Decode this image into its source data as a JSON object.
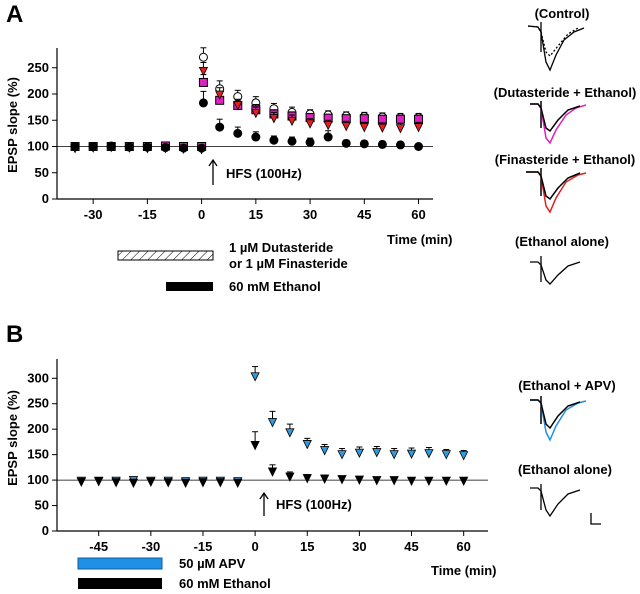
{
  "chart_data": [
    {
      "panel": "A",
      "type": "scatter",
      "ylabel": "EPSP slope (%)",
      "xlabel": "Time (min)",
      "xticks": [
        -30,
        -15,
        0,
        15,
        30,
        45,
        60
      ],
      "yticks": [
        0,
        50,
        100,
        150,
        200,
        250
      ],
      "xlim": [
        -40,
        64
      ],
      "ylim": [
        0,
        280
      ],
      "annotation": "HFS (100Hz)",
      "bars": [
        {
          "label": "1 µM Dutasteride",
          "label2": "or 1 µM Finasteride",
          "x": [
            -20,
            0
          ],
          "style": "hatched"
        },
        {
          "label": "60 mM Ethanol",
          "x": [
            -10,
            0
          ],
          "style": "black"
        }
      ],
      "series": [
        {
          "marker": "open-circle",
          "color": "#ffffff",
          "x": [
            -35,
            -30,
            -25,
            -20,
            -15,
            -10,
            -5,
            0,
            0.5,
            5,
            10,
            15,
            20,
            25,
            30,
            35,
            40,
            45,
            50,
            55,
            60
          ],
          "y": [
            100,
            100,
            101,
            100,
            99,
            100,
            99,
            98,
            270,
            210,
            195,
            183,
            172,
            165,
            162,
            160,
            158,
            157,
            156,
            155,
            155
          ],
          "err": [
            4,
            4,
            4,
            4,
            4,
            4,
            4,
            4,
            18,
            15,
            12,
            12,
            10,
            10,
            8,
            8,
            8,
            8,
            8,
            8,
            8
          ]
        },
        {
          "marker": "square",
          "color": "#e020c0",
          "x": [
            -35,
            -30,
            -25,
            -20,
            -15,
            -10,
            -5,
            0,
            0.5,
            5,
            10,
            15,
            20,
            25,
            30,
            35,
            40,
            45,
            50,
            55,
            60
          ],
          "y": [
            100,
            100,
            100,
            100,
            100,
            101,
            100,
            100,
            222,
            188,
            178,
            170,
            162,
            158,
            155,
            154,
            153,
            153,
            152,
            152,
            152
          ],
          "err": [
            3,
            3,
            3,
            3,
            3,
            3,
            3,
            3,
            15,
            12,
            10,
            10,
            8,
            8,
            8,
            7,
            7,
            7,
            7,
            7,
            7
          ]
        },
        {
          "marker": "triangle-down",
          "color": "#e02020",
          "x": [
            -35,
            -30,
            -25,
            -20,
            -15,
            -10,
            -5,
            0,
            0.5,
            5,
            10,
            15,
            20,
            25,
            30,
            35,
            40,
            45,
            50,
            55,
            60
          ],
          "y": [
            98,
            99,
            100,
            99,
            98,
            98,
            97,
            96,
            245,
            200,
            180,
            165,
            155,
            150,
            145,
            142,
            140,
            138,
            137,
            136,
            138
          ],
          "err": [
            4,
            4,
            4,
            4,
            4,
            4,
            4,
            4,
            15,
            12,
            10,
            10,
            10,
            10,
            8,
            8,
            8,
            8,
            8,
            8,
            8
          ]
        },
        {
          "marker": "filled-circle",
          "color": "#000000",
          "x": [
            -35,
            -30,
            -25,
            -20,
            -15,
            -10,
            -5,
            0,
            0.5,
            5,
            10,
            15,
            20,
            25,
            30,
            35,
            40,
            45,
            50,
            55,
            60
          ],
          "y": [
            100,
            100,
            100,
            99,
            99,
            98,
            97,
            97,
            183,
            137,
            125,
            118,
            112,
            110,
            108,
            118,
            106,
            105,
            104,
            103,
            100
          ],
          "err": [
            4,
            4,
            4,
            4,
            4,
            4,
            4,
            4,
            22,
            15,
            12,
            10,
            8,
            8,
            8,
            12,
            6,
            6,
            6,
            6,
            5
          ]
        }
      ],
      "trace_labels": [
        "(Control)",
        "(Dutasteride + Ethanol)",
        "(Finasteride + Ethanol)",
        "(Ethanol alone)"
      ]
    },
    {
      "panel": "B",
      "type": "scatter",
      "ylabel": "EPSP slope (%)",
      "xlabel": "Time (min)",
      "xticks": [
        -45,
        -30,
        -15,
        0,
        15,
        30,
        45,
        60
      ],
      "yticks": [
        0,
        50,
        100,
        150,
        200,
        250,
        300
      ],
      "xlim": [
        -57,
        67
      ],
      "ylim": [
        0,
        330
      ],
      "annotation": "HFS (100Hz)",
      "bars": [
        {
          "label": "50 µM APV",
          "x": [
            -55,
            -35
          ],
          "style": "blue"
        },
        {
          "label": "60 mM Ethanol",
          "x": [
            -55,
            -35
          ],
          "style": "black"
        }
      ],
      "series": [
        {
          "marker": "triangle-down",
          "color": "#3399dd",
          "x": [
            -50,
            -45,
            -40,
            -35,
            -30,
            -25,
            -20,
            -15,
            -10,
            -5,
            0,
            5,
            10,
            15,
            20,
            25,
            30,
            35,
            40,
            45,
            50,
            55,
            60
          ],
          "y": [
            100,
            100,
            100,
            101,
            100,
            100,
            99,
            100,
            100,
            99,
            305,
            215,
            195,
            172,
            160,
            152,
            155,
            156,
            152,
            153,
            154,
            152,
            150
          ],
          "err": [
            4,
            4,
            4,
            4,
            4,
            4,
            4,
            4,
            4,
            4,
            18,
            20,
            15,
            10,
            10,
            10,
            10,
            10,
            10,
            10,
            10,
            8,
            8
          ]
        },
        {
          "marker": "triangle-down",
          "color": "#000000",
          "x": [
            -50,
            -45,
            -40,
            -35,
            -30,
            -25,
            -20,
            -15,
            -10,
            -5,
            0,
            5,
            10,
            15,
            20,
            25,
            30,
            35,
            40,
            45,
            50,
            55,
            60
          ],
          "y": [
            98,
            99,
            97,
            96,
            98,
            97,
            96,
            97,
            97,
            96,
            170,
            118,
            108,
            105,
            104,
            103,
            102,
            101,
            101,
            100,
            100,
            100,
            100
          ],
          "err": [
            3,
            3,
            3,
            3,
            3,
            3,
            3,
            3,
            3,
            3,
            25,
            12,
            8,
            6,
            6,
            5,
            5,
            5,
            5,
            5,
            5,
            5,
            5
          ]
        }
      ],
      "trace_labels": [
        "(Ethanol + APV)",
        "(Ethanol alone)"
      ]
    }
  ]
}
